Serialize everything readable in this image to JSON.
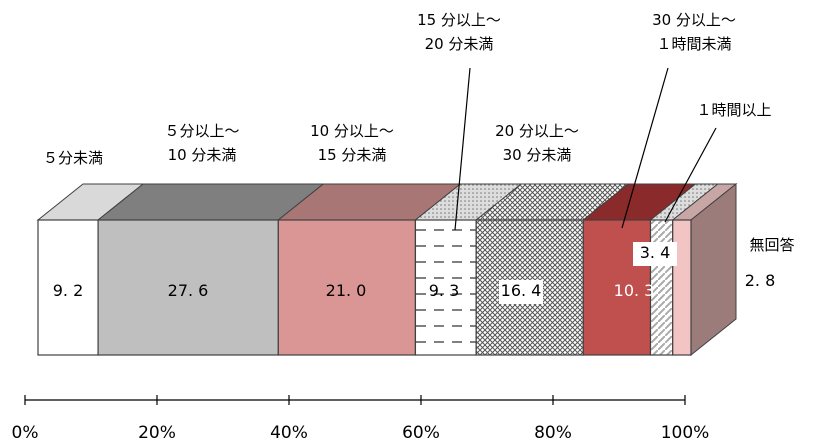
{
  "chart_data": {
    "type": "bar",
    "orientation": "horizontal-stacked-100",
    "style": "3d",
    "categories": [
      "5分未満",
      "5分以上～10分未満",
      "10 分以上～15 分未満",
      "15 分以上～20 分未満",
      "20 分以上～30 分未満",
      "30 分以上～1時間未満",
      "1時間以上",
      "無回答"
    ],
    "label_lines": [
      [
        "５分未満"
      ],
      [
        "５分以上～",
        "10 分未満"
      ],
      [
        "10 分以上～",
        "15 分未満"
      ],
      [
        "15 分以上～",
        "20 分未満"
      ],
      [
        "20 分以上～",
        "30 分未満"
      ],
      [
        "30 分以上～",
        "１時間未満"
      ],
      [
        "１時間以上"
      ],
      [
        "無回答"
      ]
    ],
    "values": [
      9.2,
      27.6,
      21.0,
      9.3,
      16.4,
      10.3,
      3.4,
      2.8
    ],
    "value_labels": [
      "9. 2",
      "27. 6",
      "21. 0",
      "9. 3",
      "16. 4",
      "10. 3",
      "3. 4",
      "2. 8"
    ],
    "colors": [
      "#ffffff",
      "#bfbfbf",
      "#d99694",
      "#ffffff",
      "#ffffff",
      "#c0504d",
      "#ffffff",
      "#f2c4c4"
    ],
    "patterns": [
      "none",
      "none",
      "none",
      "dashes",
      "crosshatch",
      "none",
      "diagonal",
      "none"
    ],
    "xlim": [
      0,
      100
    ],
    "xticks": [
      "0%",
      "20%",
      "40%",
      "60%",
      "80%",
      "100%"
    ],
    "grid": false,
    "legend": "none"
  }
}
